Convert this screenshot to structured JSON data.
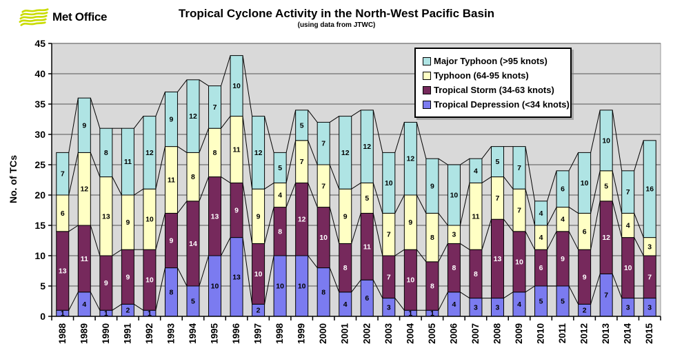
{
  "header": {
    "logo_text": "Met Office",
    "title": "Tropical Cyclone Activity in the North-West Pacific Basin",
    "subtitle": "(using data from JTWC)"
  },
  "chart_data": {
    "type": "bar",
    "stacked": true,
    "title": "Tropical Cyclone Activity in the North-West Pacific Basin",
    "subtitle": "(using data from JTWC)",
    "xlabel": "",
    "ylabel": "No. of TCs",
    "ylim": [
      0,
      45
    ],
    "ytick_step": 5,
    "grid": true,
    "series_lines": true,
    "legend_position": "top-right",
    "plot_bg_color": "#D9D9D9",
    "grid_color": "#808080",
    "categories": [
      "1988",
      "1989",
      "1990",
      "1991",
      "1992",
      "1993",
      "1994",
      "1995",
      "1996",
      "1997",
      "1998",
      "1999",
      "2000",
      "2001",
      "2002",
      "2003",
      "2004",
      "2005",
      "2006",
      "2007",
      "2008",
      "2009",
      "2010",
      "2011",
      "2012",
      "2013",
      "2014",
      "2015"
    ],
    "series": [
      {
        "name": "Tropical Depression (<34 knots)",
        "color": "#7B7BF0",
        "label_color": "#000000",
        "values": [
          1,
          4,
          1,
          2,
          1,
          8,
          5,
          10,
          13,
          2,
          10,
          10,
          8,
          4,
          6,
          3,
          1,
          1,
          4,
          3,
          3,
          4,
          5,
          5,
          2,
          7,
          3,
          3
        ]
      },
      {
        "name": "Tropical Storm (34-63 knots)",
        "color": "#76295C",
        "label_color": "#FFFFFF",
        "values": [
          13,
          11,
          9,
          9,
          10,
          9,
          14,
          13,
          9,
          10,
          8,
          12,
          10,
          8,
          11,
          7,
          10,
          8,
          8,
          8,
          13,
          10,
          6,
          9,
          9,
          12,
          10,
          7
        ]
      },
      {
        "name": "Typhoon (64-95 knots)",
        "color": "#FFFFC4",
        "label_color": "#000000",
        "values": [
          6,
          12,
          13,
          9,
          10,
          11,
          8,
          8,
          11,
          9,
          4,
          7,
          7,
          9,
          5,
          7,
          9,
          8,
          3,
          11,
          7,
          7,
          4,
          4,
          6,
          5,
          4,
          3
        ]
      },
      {
        "name": "Major Typhoon (>95 knots)",
        "color": "#AFE4E4",
        "label_color": "#000000",
        "values": [
          7,
          9,
          8,
          11,
          12,
          9,
          12,
          7,
          10,
          12,
          5,
          5,
          7,
          12,
          12,
          10,
          12,
          9,
          10,
          4,
          5,
          7,
          4,
          6,
          10,
          10,
          7,
          16
        ]
      }
    ],
    "totals": [
      27,
      36,
      31,
      31,
      33,
      37,
      39,
      38,
      43,
      33,
      27,
      34,
      32,
      33,
      34,
      27,
      32,
      26,
      25,
      26,
      28,
      28,
      19,
      24,
      27,
      34,
      24,
      29
    ],
    "legend": [
      {
        "label": "Major Typhoon (>95 knots)",
        "color": "#AFE4E4"
      },
      {
        "label": "Typhoon (64-95 knots)",
        "color": "#FFFFC4"
      },
      {
        "label": "Tropical Storm (34-63 knots)",
        "color": "#76295C"
      },
      {
        "label": "Tropical Depression (<34 knots)",
        "color": "#7B7BF0"
      }
    ]
  }
}
